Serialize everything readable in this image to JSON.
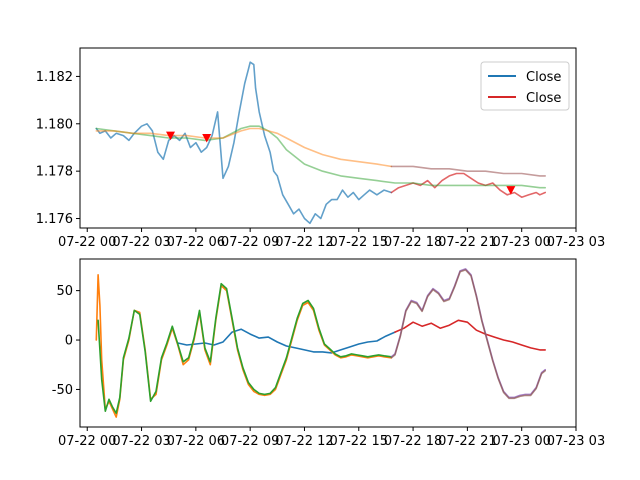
{
  "chart_data": [
    {
      "type": "line",
      "panel": "top",
      "x_ticks": [
        "07-22 00",
        "07-22 03",
        "07-22 06",
        "07-22 09",
        "07-22 12",
        "07-22 15",
        "07-22 18",
        "07-22 21",
        "07-23 00",
        "07-23 03"
      ],
      "xlim": [
        -0.4,
        27
      ],
      "y_ticks": [
        "1.176",
        "1.178",
        "1.180",
        "1.182"
      ],
      "ylim": [
        1.1756,
        1.1832
      ],
      "legend_position": "top-right",
      "legend": [
        {
          "label": "Close",
          "color": "#1f77b4"
        },
        {
          "label": "Close",
          "color": "#d62728"
        }
      ],
      "series": [
        {
          "name": "Close",
          "color": "#1f77b4",
          "alpha": 0.7,
          "x": [
            0.5,
            0.7,
            1.0,
            1.3,
            1.6,
            2.0,
            2.3,
            2.6,
            3.0,
            3.3,
            3.6,
            3.9,
            4.2,
            4.5,
            4.8,
            5.1,
            5.4,
            5.7,
            6.0,
            6.3,
            6.6,
            6.9,
            7.2,
            7.5,
            7.8,
            8.1,
            8.4,
            8.7,
            8.9,
            9.0,
            9.2,
            9.3,
            9.5,
            9.8,
            10.1,
            10.3,
            10.5,
            10.8,
            11.1,
            11.4,
            11.7,
            12.0,
            12.3,
            12.6,
            12.9,
            13.2,
            13.5,
            13.8,
            14.1,
            14.4,
            14.7,
            15.0,
            15.3,
            15.6,
            16.0,
            16.4,
            16.8
          ],
          "y": [
            1.1798,
            1.1796,
            1.1797,
            1.1794,
            1.1796,
            1.1795,
            1.1793,
            1.1796,
            1.1799,
            1.18,
            1.1797,
            1.1788,
            1.1785,
            1.1793,
            1.1795,
            1.1793,
            1.1796,
            1.179,
            1.1792,
            1.1788,
            1.179,
            1.1795,
            1.1805,
            1.1777,
            1.1782,
            1.1792,
            1.1805,
            1.1817,
            1.1823,
            1.1826,
            1.1825,
            1.1815,
            1.1805,
            1.1795,
            1.1788,
            1.178,
            1.1778,
            1.177,
            1.1766,
            1.1762,
            1.1764,
            1.176,
            1.1758,
            1.1762,
            1.176,
            1.1766,
            1.1768,
            1.1768,
            1.1772,
            1.1769,
            1.1771,
            1.1768,
            1.177,
            1.1772,
            1.177,
            1.1772,
            1.1771
          ]
        },
        {
          "name": "Close",
          "color": "#d62728",
          "alpha": 0.7,
          "x": [
            16.8,
            17.2,
            17.6,
            18.0,
            18.4,
            18.8,
            19.2,
            19.6,
            20.0,
            20.4,
            20.8,
            21.2,
            21.6,
            22.0,
            22.4,
            22.8,
            23.2,
            23.6,
            24.0,
            24.4,
            24.8,
            25.0,
            25.3
          ],
          "y": [
            1.1771,
            1.1773,
            1.1774,
            1.1775,
            1.1774,
            1.1776,
            1.1773,
            1.1776,
            1.1778,
            1.1779,
            1.1779,
            1.1777,
            1.1775,
            1.1774,
            1.1775,
            1.1772,
            1.177,
            1.1771,
            1.1769,
            1.177,
            1.1771,
            1.177,
            1.1771
          ]
        },
        {
          "color": "#2ca02c",
          "alpha": 0.5,
          "x": [
            0.5,
            1.5,
            2.5,
            3.5,
            4.5,
            5.5,
            6.5,
            7.5,
            8.5,
            9.0,
            9.5,
            10.0,
            10.5,
            11.0,
            11.5,
            12.0,
            13.0,
            14.0,
            15.0,
            16.0,
            17.0,
            18.0,
            19.0,
            20.0,
            21.0,
            22.0,
            23.0,
            24.0,
            25.0,
            25.3
          ],
          "y": [
            1.1798,
            1.1797,
            1.1796,
            1.1795,
            1.1794,
            1.1794,
            1.1793,
            1.1794,
            1.1798,
            1.1799,
            1.1799,
            1.1797,
            1.1794,
            1.1789,
            1.1786,
            1.1783,
            1.178,
            1.1778,
            1.1777,
            1.1776,
            1.1775,
            1.1775,
            1.1774,
            1.1774,
            1.1774,
            1.1774,
            1.1774,
            1.1774,
            1.1773,
            1.1773
          ]
        },
        {
          "color": "#ff7f0e",
          "alpha": 0.5,
          "x": [
            0.5,
            1.5,
            2.5,
            3.5,
            4.5,
            5.5,
            6.5,
            7.5,
            8.5,
            9.0,
            9.5,
            10.0,
            10.5,
            11.0,
            12.0,
            13.0,
            14.0,
            15.0,
            16.0,
            16.8
          ],
          "y": [
            1.1797,
            1.1797,
            1.1796,
            1.1796,
            1.1795,
            1.1795,
            1.1794,
            1.1794,
            1.1797,
            1.1798,
            1.1798,
            1.1797,
            1.1796,
            1.1794,
            1.179,
            1.1787,
            1.1785,
            1.1784,
            1.1783,
            1.1782
          ]
        },
        {
          "color": "#8c3a3a",
          "alpha": 0.5,
          "x": [
            16.8,
            18.0,
            19.0,
            20.0,
            21.0,
            22.0,
            23.0,
            24.0,
            25.0,
            25.3
          ],
          "y": [
            1.1782,
            1.1782,
            1.1781,
            1.1781,
            1.178,
            1.178,
            1.1779,
            1.1779,
            1.1778,
            1.1778
          ]
        }
      ],
      "markers": {
        "shape": "triangle-down",
        "color": "#ff0000",
        "points": [
          {
            "x": 4.6,
            "y": 1.1795
          },
          {
            "x": 6.6,
            "y": 1.1794
          },
          {
            "x": 23.4,
            "y": 1.1772
          }
        ]
      }
    },
    {
      "type": "line",
      "panel": "bottom",
      "x_ticks": [
        "07-22 00",
        "07-22 03",
        "07-22 06",
        "07-22 09",
        "07-22 12",
        "07-22 15",
        "07-22 18",
        "07-22 21",
        "07-23 00",
        "07-23 03"
      ],
      "xlim": [
        -0.4,
        27
      ],
      "y_ticks": [
        "-50",
        "0",
        "50"
      ],
      "ylim": [
        -88,
        82
      ],
      "series": [
        {
          "color": "#1f77b4",
          "x": [
            5.0,
            5.5,
            6.0,
            6.5,
            7.0,
            7.5,
            8.0,
            8.5,
            9.0,
            9.5,
            10.0,
            10.5,
            11.0,
            11.5,
            12.0,
            12.5,
            13.0,
            13.5,
            14.0,
            14.5,
            15.0,
            15.5,
            16.0,
            16.5,
            17.0
          ],
          "y": [
            -3,
            -5,
            -4,
            -3,
            -5,
            -2,
            8,
            11,
            6,
            2,
            3,
            -2,
            -6,
            -8,
            -10,
            -12,
            -12,
            -13,
            -10,
            -7,
            -4,
            -2,
            -1,
            4,
            8
          ]
        },
        {
          "color": "#d62728",
          "x": [
            17.0,
            17.5,
            18.0,
            18.5,
            19.0,
            19.5,
            20.0,
            20.5,
            21.0,
            21.5,
            22.0,
            22.5,
            23.0,
            23.5,
            24.0,
            24.5,
            25.0,
            25.3
          ],
          "y": [
            8,
            12,
            18,
            14,
            17,
            12,
            15,
            20,
            18,
            10,
            6,
            3,
            0,
            -2,
            -5,
            -8,
            -10,
            -10
          ]
        },
        {
          "color": "#ff7f0e",
          "x": [
            0.5,
            0.6,
            0.7,
            0.8,
            1.0,
            1.2,
            1.4,
            1.6,
            1.8,
            2.0,
            2.3,
            2.6,
            2.9,
            3.2,
            3.5,
            3.8,
            4.1,
            4.4,
            4.7,
            5.0,
            5.3,
            5.6,
            5.9,
            6.2,
            6.5,
            6.8,
            7.1,
            7.4,
            7.7,
            8.0,
            8.3,
            8.6,
            8.9,
            9.2,
            9.5,
            9.8,
            10.1,
            10.4,
            10.7,
            11.0,
            11.3,
            11.6,
            11.9,
            12.2,
            12.5,
            12.8,
            13.1,
            13.4,
            13.7,
            14.0,
            14.3,
            14.6,
            14.9,
            15.2,
            15.5,
            15.8,
            16.1,
            16.4,
            16.8
          ],
          "y": [
            0,
            66,
            35,
            -20,
            -70,
            -62,
            -70,
            -78,
            -60,
            -20,
            0,
            30,
            28,
            -10,
            -60,
            -55,
            -20,
            -5,
            12,
            -5,
            -25,
            -20,
            0,
            28,
            -10,
            -25,
            20,
            55,
            50,
            20,
            -10,
            -30,
            -45,
            -52,
            -55,
            -56,
            -55,
            -50,
            -35,
            -20,
            0,
            20,
            35,
            38,
            30,
            10,
            -5,
            -10,
            -15,
            -18,
            -17,
            -15,
            -16,
            -17,
            -18,
            -17,
            -16,
            -17,
            -18
          ]
        },
        {
          "color": "#2ca02c",
          "x": [
            0.6,
            0.8,
            1.0,
            1.2,
            1.4,
            1.6,
            1.8,
            2.0,
            2.3,
            2.6,
            2.9,
            3.2,
            3.5,
            3.8,
            4.1,
            4.4,
            4.7,
            5.0,
            5.3,
            5.6,
            5.9,
            6.2,
            6.5,
            6.8,
            7.1,
            7.4,
            7.7,
            8.0,
            8.3,
            8.6,
            8.9,
            9.2,
            9.5,
            9.8,
            10.1,
            10.4,
            10.7,
            11.0,
            11.3,
            11.6,
            11.9,
            12.2,
            12.5,
            12.8,
            13.1,
            13.4,
            13.7,
            14.0,
            14.3,
            14.6,
            14.9,
            15.2,
            15.5,
            15.8,
            16.1,
            16.4,
            16.8
          ],
          "y": [
            20,
            -40,
            -72,
            -60,
            -68,
            -74,
            -58,
            -18,
            2,
            30,
            26,
            -12,
            -62,
            -52,
            -18,
            -3,
            14,
            -4,
            -22,
            -18,
            2,
            30,
            -8,
            -22,
            22,
            57,
            52,
            22,
            -8,
            -28,
            -43,
            -50,
            -54,
            -55,
            -54,
            -48,
            -33,
            -18,
            2,
            22,
            37,
            40,
            32,
            12,
            -4,
            -9,
            -14,
            -17,
            -16,
            -14,
            -15,
            -16,
            -17,
            -16,
            -15,
            -16,
            -17
          ]
        },
        {
          "color": "#9467bd",
          "alpha": 0.85,
          "x": [
            16.8,
            17.0,
            17.3,
            17.6,
            17.9,
            18.2,
            18.5,
            18.8,
            19.1,
            19.4,
            19.7,
            20.0,
            20.3,
            20.6,
            20.9,
            21.2,
            21.5,
            21.8,
            22.1,
            22.4,
            22.7,
            23.0,
            23.3,
            23.6,
            23.9,
            24.2,
            24.5,
            24.8,
            25.1,
            25.3
          ],
          "y": [
            -17,
            -14,
            5,
            30,
            40,
            38,
            30,
            45,
            52,
            48,
            40,
            42,
            55,
            70,
            72,
            66,
            45,
            20,
            0,
            -20,
            -38,
            -52,
            -58,
            -58,
            -56,
            -55,
            -55,
            -48,
            -33,
            -30
          ]
        },
        {
          "color": "#8c564b",
          "alpha": 0.7,
          "x": [
            16.8,
            17.0,
            17.3,
            17.6,
            17.9,
            18.2,
            18.5,
            18.8,
            19.1,
            19.4,
            19.7,
            20.0,
            20.3,
            20.6,
            20.9,
            21.2,
            21.5,
            21.8,
            22.1,
            22.4,
            22.7,
            23.0,
            23.3,
            23.6,
            23.9,
            24.2,
            24.5,
            24.8,
            25.1,
            25.3
          ],
          "y": [
            -18,
            -15,
            4,
            29,
            39,
            37,
            29,
            44,
            51,
            47,
            39,
            41,
            54,
            69,
            71,
            65,
            44,
            19,
            -1,
            -21,
            -39,
            -53,
            -59,
            -59,
            -57,
            -56,
            -56,
            -49,
            -34,
            -31
          ]
        }
      ]
    }
  ]
}
